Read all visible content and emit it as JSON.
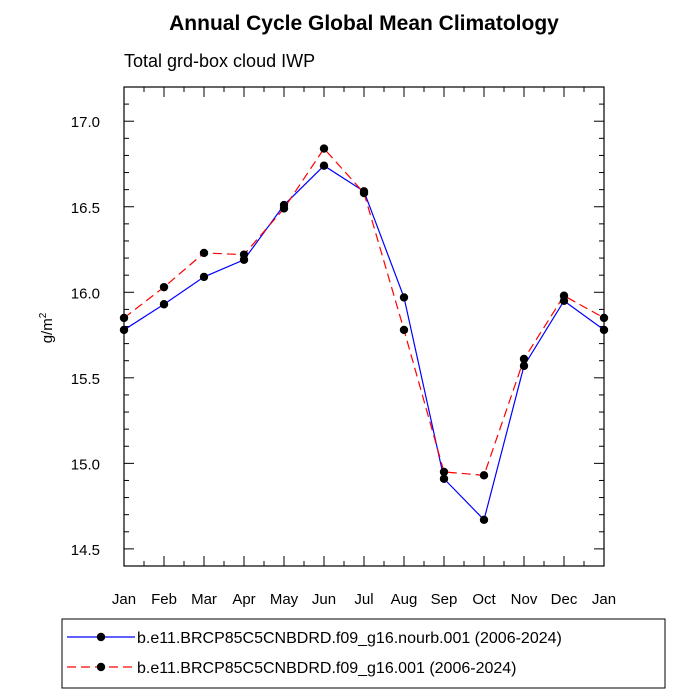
{
  "chart_data": {
    "type": "line",
    "title": "Annual Cycle Global Mean Climatology",
    "subtitle": "Total grd-box cloud IWP",
    "ylabel": "g/m",
    "ylabel_superscript": "2",
    "xlabel": "",
    "categories": [
      "Jan",
      "Feb",
      "Mar",
      "Apr",
      "May",
      "Jun",
      "Jul",
      "Aug",
      "Sep",
      "Oct",
      "Nov",
      "Dec",
      "Jan"
    ],
    "ylim": [
      14.4,
      17.2
    ],
    "yticks": [
      14.5,
      15.0,
      15.5,
      16.0,
      16.5,
      17.0
    ],
    "ytick_labels": [
      "14.5",
      "15.0",
      "15.5",
      "16.0",
      "16.5",
      "17.0"
    ],
    "series": [
      {
        "name": "b.e11.BRCP85C5CNBDRD.f09_g16.nourb.001 (2006-2024)",
        "color": "#0000ff",
        "dash": "solid",
        "values": [
          15.78,
          15.93,
          16.09,
          16.19,
          16.51,
          16.74,
          16.59,
          15.97,
          14.91,
          14.67,
          15.57,
          15.95,
          15.78
        ]
      },
      {
        "name": "b.e11.BRCP85C5CNBDRD.f09_g16.001 (2006-2024)",
        "color": "#ff0000",
        "dash": "dashed",
        "values": [
          15.85,
          16.03,
          16.23,
          16.22,
          16.49,
          16.84,
          16.58,
          15.78,
          14.95,
          14.93,
          15.61,
          15.98,
          15.85
        ]
      }
    ],
    "legend_position": "bottom"
  }
}
